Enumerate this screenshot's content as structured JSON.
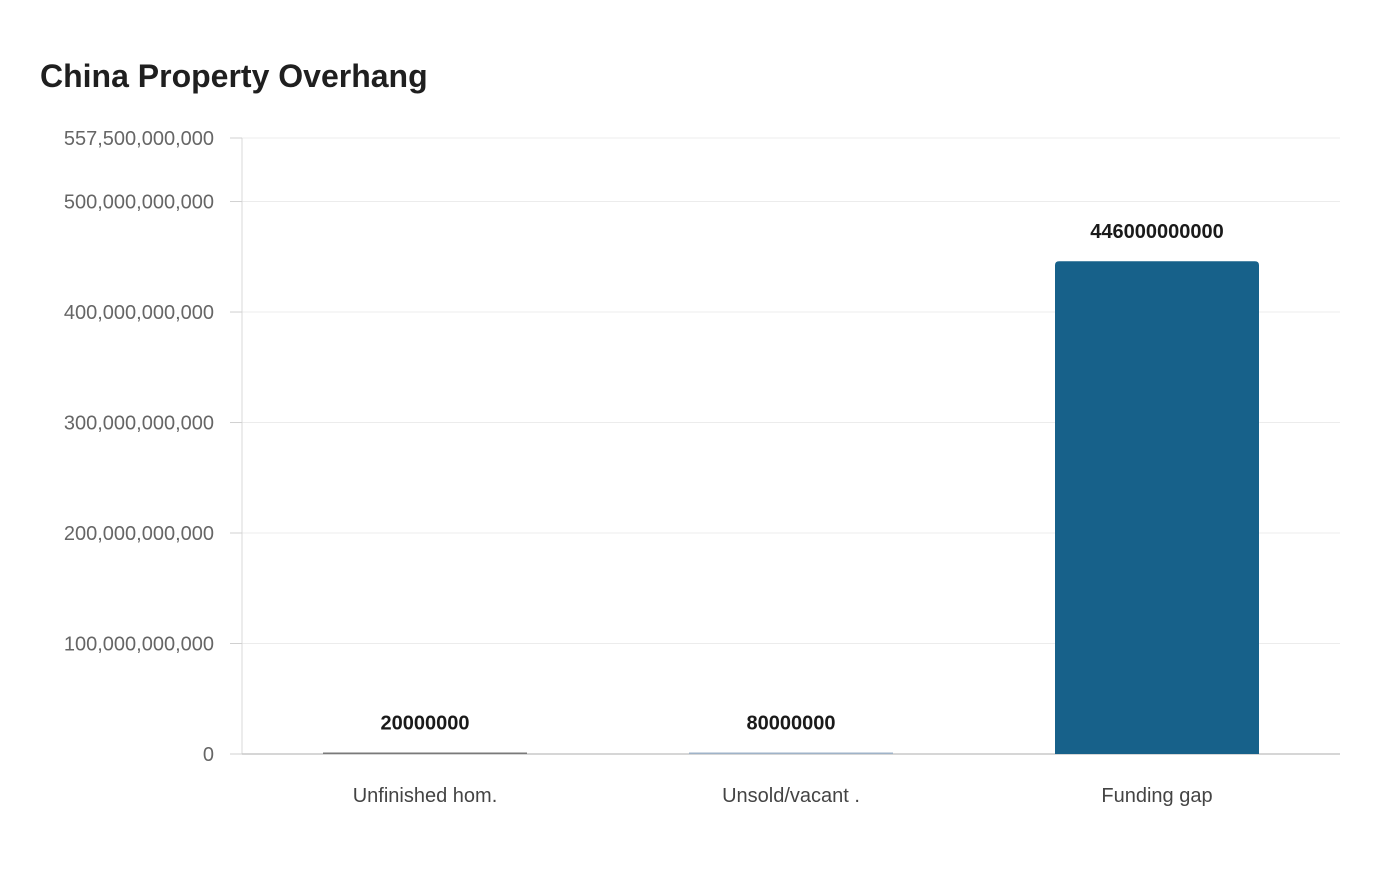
{
  "chart_data": {
    "type": "bar",
    "title": "China Property Overhang",
    "xlabel": "",
    "ylabel": "",
    "categories": [
      "Unfinished hom.",
      "Unsold/vacant .",
      "Funding gap"
    ],
    "values": [
      20000000,
      80000000,
      446000000000
    ],
    "data_labels": [
      "20000000",
      "80000000",
      "446000000000"
    ],
    "ylim": [
      0,
      557500000000
    ],
    "yticks": [
      0,
      100000000000,
      200000000000,
      300000000000,
      400000000000,
      500000000000,
      557500000000
    ],
    "ytick_labels": [
      "0",
      "100,000,000,000",
      "200,000,000,000",
      "300,000,000,000",
      "400,000,000,000",
      "500,000,000,000",
      "557,500,000,000"
    ],
    "bar_colors": [
      "#7a7a7a",
      "#9fb3c8",
      "#17618a"
    ],
    "grid": true,
    "legend": "none"
  }
}
